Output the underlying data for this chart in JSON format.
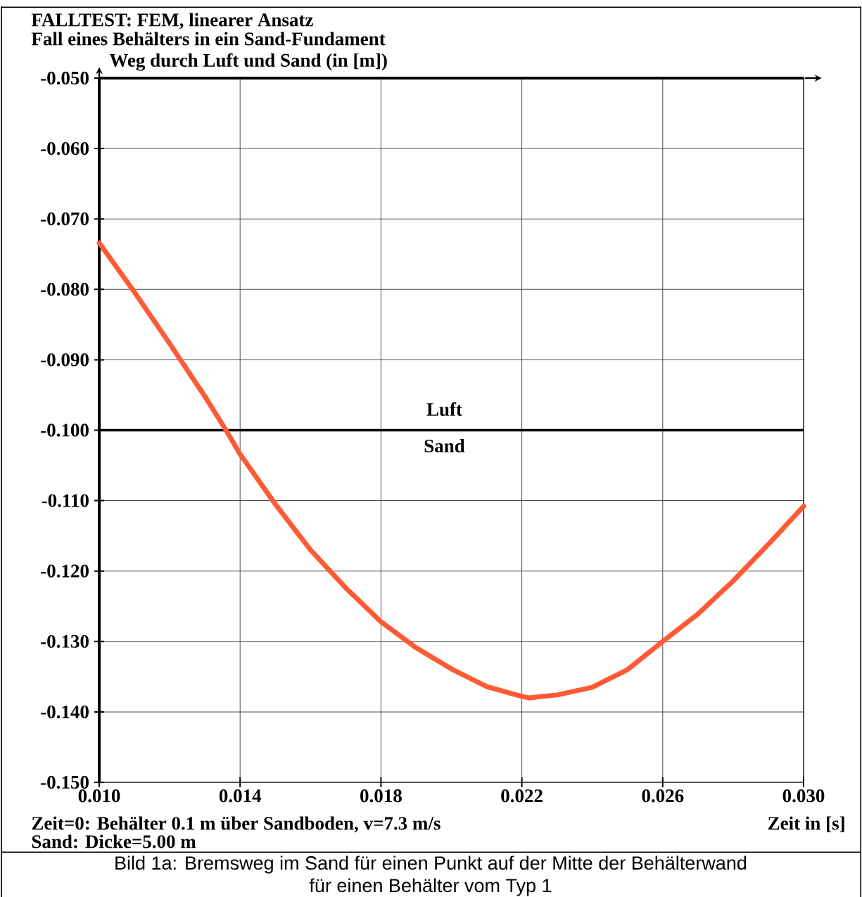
{
  "chart_data": {
    "type": "line",
    "title": "FALLTEST: FEM, linearer Ansatz",
    "subtitle": "Fall eines Behälters in ein Sand-Fundament",
    "ylabel": "Weg durch Luft und Sand (in [m])",
    "xlabel": "Zeit in [s]",
    "x": [
      0.01,
      0.011,
      0.012,
      0.013,
      0.0136,
      0.014,
      0.015,
      0.016,
      0.017,
      0.018,
      0.019,
      0.02,
      0.021,
      0.022,
      0.0222,
      0.023,
      0.024,
      0.025,
      0.026,
      0.027,
      0.028,
      0.029,
      0.03
    ],
    "series": [
      {
        "color": "#ff5a36",
        "values": [
          -0.0734,
          -0.0804,
          -0.0877,
          -0.0952,
          -0.1,
          -0.1034,
          -0.1105,
          -0.117,
          -0.1224,
          -0.1272,
          -0.1309,
          -0.1339,
          -0.1364,
          -0.1378,
          -0.138,
          -0.1376,
          -0.1365,
          -0.134,
          -0.13,
          -0.1261,
          -0.1214,
          -0.1162,
          -0.1108
        ]
      }
    ],
    "xlim": [
      0.01,
      0.03
    ],
    "ylim": [
      -0.15,
      -0.05
    ],
    "xticks": [
      {
        "value": 0.01,
        "label": "0.010"
      },
      {
        "value": 0.014,
        "label": "0.014"
      },
      {
        "value": 0.018,
        "label": "0.018"
      },
      {
        "value": 0.022,
        "label": "0.022"
      },
      {
        "value": 0.026,
        "label": "0.026"
      },
      {
        "value": 0.03,
        "label": "0.030"
      }
    ],
    "yticks": [
      {
        "value": -0.15,
        "label": "-0.150"
      },
      {
        "value": -0.14,
        "label": "-0.140"
      },
      {
        "value": -0.13,
        "label": "-0.130"
      },
      {
        "value": -0.12,
        "label": "-0.120"
      },
      {
        "value": -0.11,
        "label": "-0.110"
      },
      {
        "value": -0.1,
        "label": "-0.100"
      },
      {
        "value": -0.09,
        "label": "-0.090"
      },
      {
        "value": -0.08,
        "label": "-0.080"
      },
      {
        "value": -0.07,
        "label": "-0.070"
      },
      {
        "value": -0.06,
        "label": "-0.060"
      },
      {
        "value": -0.05,
        "label": "-0.050"
      }
    ],
    "grid": true,
    "marker": "none",
    "line_style": "solid",
    "ref_lines": [
      {
        "axis": "y",
        "value": -0.1,
        "color": "#000000"
      }
    ],
    "annotations": [
      "Luft",
      "Sand",
      "Zeit=0: Behälter 0.1 m über Sandboden, v=7.3 m/s",
      "Sand: Dicke=5.00 m",
      "Bild 1a: Bremsweg im Sand für einen Punkt auf der Mitte der Behälterwand",
      "für einen Behälter vom Typ 1"
    ]
  }
}
